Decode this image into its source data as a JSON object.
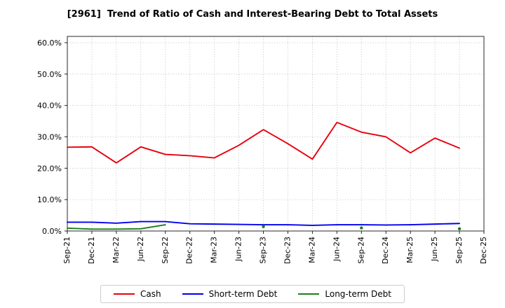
{
  "chart_data": {
    "type": "line",
    "title": "[2961]  Trend of Ratio of Cash and Interest-Bearing Debt to Total Assets",
    "xlabel": "",
    "ylabel": "",
    "x_labels": [
      "Sep-21",
      "Dec-21",
      "Mar-22",
      "Jun-22",
      "Sep-22",
      "Dec-22",
      "Mar-23",
      "Jun-23",
      "Sep-23",
      "Dec-23",
      "Mar-24",
      "Jun-24",
      "Sep-24",
      "Dec-24",
      "Mar-25",
      "Jun-25",
      "Sep-25",
      "Dec-25"
    ],
    "ylim": [
      0,
      62
    ],
    "yticks": [
      0,
      10,
      20,
      30,
      40,
      50,
      60
    ],
    "ytick_labels": [
      "0.0%",
      "10.0%",
      "20.0%",
      "30.0%",
      "40.0%",
      "50.0%",
      "60.0%"
    ],
    "grid": true,
    "grid_style": "dotted",
    "legend_position": "bottom",
    "colors": {
      "cash": "#e8000d",
      "short_term_debt": "#0000ee",
      "long_term_debt": "#1a7f1a"
    },
    "series": [
      {
        "name": "Cash",
        "color": "#e8000d",
        "values": [
          26.7,
          26.8,
          21.7,
          26.8,
          24.4,
          24.0,
          23.3,
          27.3,
          32.3,
          27.8,
          22.9,
          34.6,
          31.5,
          30.0,
          24.9,
          29.6,
          26.4,
          null
        ]
      },
      {
        "name": "Short-term Debt",
        "color": "#0000ee",
        "values": [
          2.8,
          2.8,
          2.5,
          3.0,
          3.0,
          2.3,
          2.2,
          2.1,
          2.0,
          2.0,
          1.8,
          2.0,
          2.0,
          1.9,
          2.0,
          2.2,
          2.4,
          null
        ]
      },
      {
        "name": "Long-term Debt",
        "color": "#1a7f1a",
        "values": [
          0.9,
          0.6,
          0.6,
          0.7,
          2.0,
          null,
          null,
          null,
          1.4,
          null,
          null,
          null,
          1.0,
          null,
          null,
          null,
          0.7,
          null
        ]
      }
    ]
  }
}
